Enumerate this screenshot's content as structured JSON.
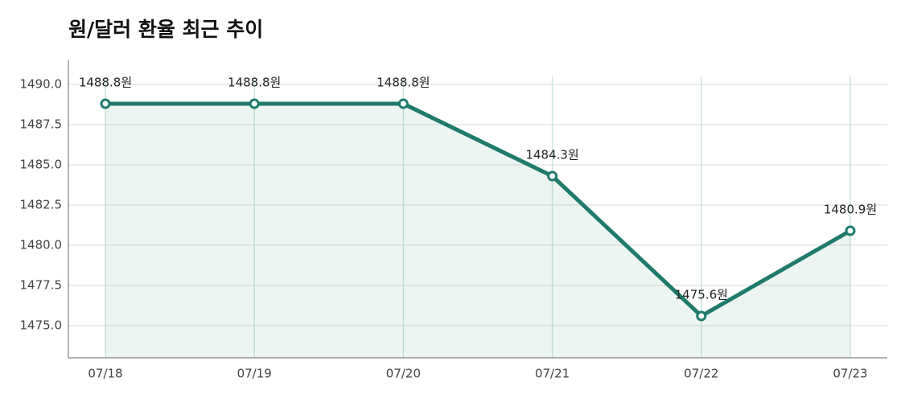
{
  "chart_data": {
    "type": "line",
    "title": "원/달러 환율 최근 추이",
    "categories": [
      "07/18",
      "07/19",
      "07/20",
      "07/21",
      "07/22",
      "07/23"
    ],
    "series": [
      {
        "color": "#1f7a6c",
        "values": [
          1488.8,
          1488.8,
          1488.8,
          1484.3,
          1475.6,
          1480.9
        ],
        "value_labels": [
          "1488.8원",
          "1488.8원",
          "1488.8원",
          "1484.3원",
          "1475.6원",
          "1480.9원"
        ]
      }
    ],
    "ylim": [
      1473,
      1491.5
    ],
    "yticks": [
      {
        "value": 1475,
        "label": "1475.0"
      },
      1477.5,
      {
        "value": 1480,
        "label": "1480.0"
      },
      1482.5,
      {
        "value": 1485,
        "label": "1485.0"
      },
      1487.5,
      {
        "value": 1490,
        "label": "1490.0"
      }
    ],
    "grid": true,
    "area": true
  }
}
